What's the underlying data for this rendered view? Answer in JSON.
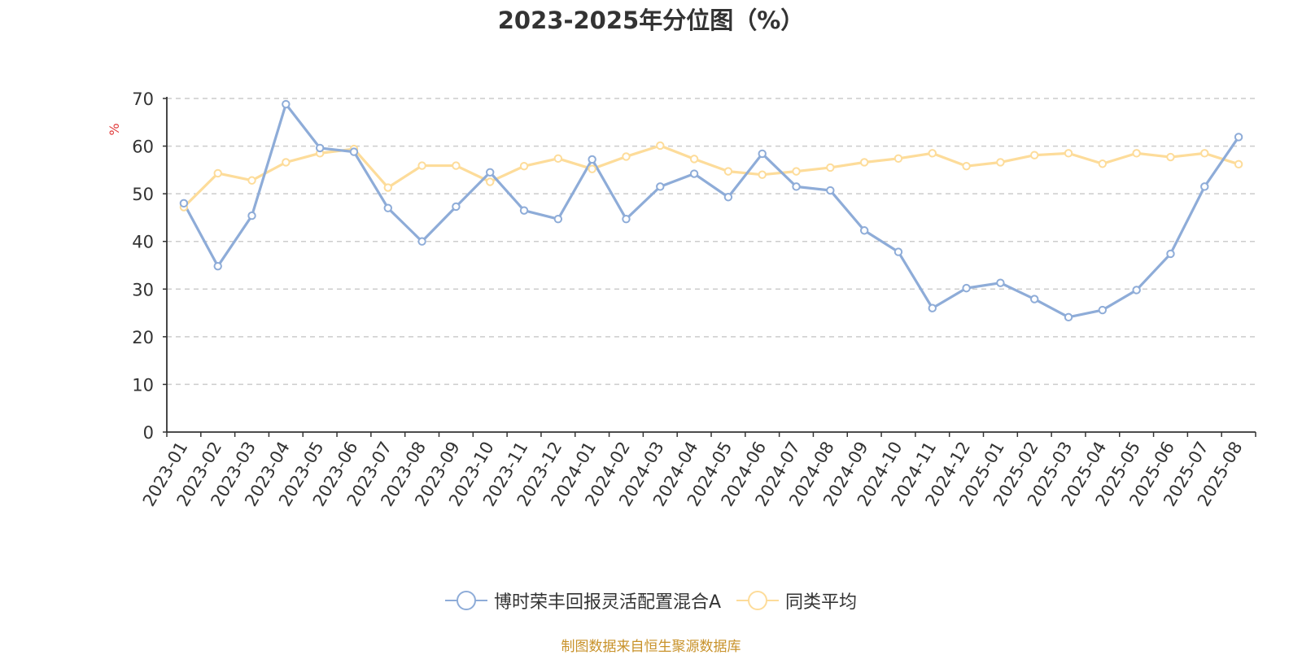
{
  "chart_data": {
    "type": "line",
    "title": "2023-2025年分位图（%）",
    "ylabel": "%",
    "ylim": [
      0,
      70
    ],
    "yticks": [
      0,
      10,
      20,
      30,
      40,
      50,
      60,
      70
    ],
    "grid": true,
    "legend_position": "bottom",
    "categories": [
      "2023-01",
      "2023-02",
      "2023-03",
      "2023-04",
      "2023-05",
      "2023-06",
      "2023-07",
      "2023-08",
      "2023-09",
      "2023-10",
      "2023-11",
      "2023-12",
      "2024-01",
      "2024-02",
      "2024-03",
      "2024-04",
      "2024-05",
      "2024-06",
      "2024-07",
      "2024-08",
      "2024-09",
      "2024-10",
      "2024-11",
      "2024-12",
      "2025-01",
      "2025-02",
      "2025-03",
      "2025-04",
      "2025-05",
      "2025-06",
      "2025-07",
      "2025-08"
    ],
    "series": [
      {
        "name": "博时荣丰回报灵活配置混合A",
        "color": "#8eacd8",
        "values": [
          48.0,
          34.8,
          45.4,
          68.8,
          59.6,
          58.8,
          47.0,
          40.0,
          47.3,
          54.5,
          46.5,
          44.7,
          57.2,
          44.7,
          51.5,
          54.2,
          49.3,
          58.4,
          51.5,
          50.7,
          42.3,
          37.8,
          26.0,
          30.2,
          31.3,
          27.9,
          24.1,
          25.6,
          29.8,
          37.4,
          51.5,
          61.9
        ]
      },
      {
        "name": "同类平均",
        "color": "#fddc9a",
        "values": [
          47.2,
          54.3,
          52.8,
          56.6,
          58.5,
          59.4,
          51.3,
          55.9,
          55.9,
          52.5,
          55.8,
          57.4,
          55.2,
          57.8,
          60.1,
          57.3,
          54.7,
          54.0,
          54.7,
          55.5,
          56.6,
          57.4,
          58.5,
          55.8,
          56.6,
          58.1,
          58.5,
          56.3,
          58.5,
          57.7,
          58.5,
          56.2
        ]
      }
    ]
  },
  "source_text": "制图数据来自恒生聚源数据库"
}
